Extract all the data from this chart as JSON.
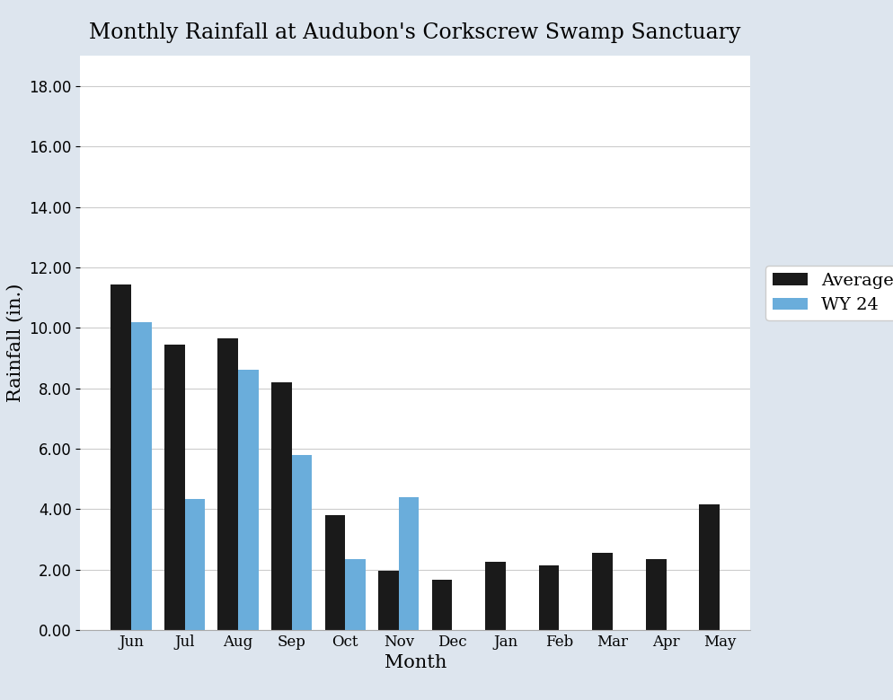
{
  "title": "Monthly Rainfall at Audubon's Corkscrew Swamp Sanctuary",
  "xlabel": "Month",
  "ylabel": "Rainfall (in.)",
  "months": [
    "Jun",
    "Jul",
    "Aug",
    "Sep",
    "Oct",
    "Nov",
    "Dec",
    "Jan",
    "Feb",
    "Mar",
    "Apr",
    "May"
  ],
  "average": [
    11.45,
    9.45,
    9.65,
    8.2,
    3.8,
    1.95,
    1.65,
    2.25,
    2.15,
    2.55,
    2.35,
    4.15
  ],
  "wy24": [
    10.2,
    4.35,
    8.6,
    5.8,
    2.35,
    4.4,
    null,
    null,
    null,
    null,
    null,
    null
  ],
  "avg_color": "#1a1a1a",
  "wy24_color": "#6aaddb",
  "ylim": [
    0,
    19
  ],
  "yticks": [
    0.0,
    2.0,
    4.0,
    6.0,
    8.0,
    10.0,
    12.0,
    14.0,
    16.0,
    18.0
  ],
  "legend_labels": [
    "Average",
    "WY 24"
  ],
  "bar_width": 0.38,
  "plot_bg_color": "#ffffff",
  "fig_bg_color": "#e8eef5",
  "title_fontsize": 17,
  "axis_label_fontsize": 15,
  "tick_fontsize": 12,
  "legend_fontsize": 14
}
